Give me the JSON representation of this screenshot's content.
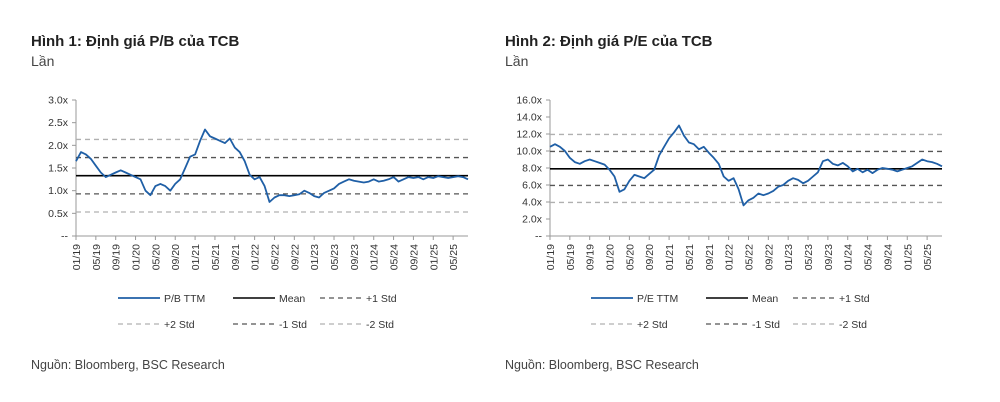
{
  "charts": [
    {
      "title": "Hình 1: Định giá P/B của TCB",
      "unit": "Lần",
      "source": "Nguồn: Bloomberg, BSC Research"
    },
    {
      "title": "Hình 2: Định giá P/E của TCB",
      "unit": "Lần",
      "source": "Nguồn: Bloomberg, BSC Research"
    }
  ],
  "colors": {
    "series": "#1f5fa6",
    "mean": "#000000",
    "std1": "#555555",
    "std2": "#b0b0b0"
  },
  "chart_data": [
    {
      "type": "line",
      "title": "Hình 1: Định giá P/B của TCB",
      "ylabel": "Lần",
      "ylim": [
        0,
        3.0
      ],
      "y_ticks": [
        "--",
        "0.5x",
        "1.0x",
        "1.5x",
        "2.0x",
        "2.5x",
        "3.0x"
      ],
      "y_tick_values": [
        0,
        0.5,
        1.0,
        1.5,
        2.0,
        2.5,
        3.0
      ],
      "x_ticks": [
        "01/19",
        "05/19",
        "09/19",
        "01/20",
        "05/20",
        "09/20",
        "01/21",
        "05/21",
        "09/21",
        "01/22",
        "05/22",
        "09/22",
        "01/23",
        "05/23",
        "09/23",
        "01/24",
        "05/24",
        "09/24",
        "01/25",
        "05/25"
      ],
      "x_range": [
        0,
        79
      ],
      "series": [
        {
          "name": "P/B TTM",
          "x": [
            0,
            1,
            2,
            3,
            4,
            5,
            6,
            7,
            8,
            9,
            10,
            11,
            12,
            13,
            14,
            15,
            16,
            17,
            18,
            19,
            20,
            21,
            22,
            23,
            24,
            25,
            26,
            27,
            28,
            29,
            30,
            31,
            32,
            33,
            34,
            35,
            36,
            37,
            38,
            39,
            40,
            41,
            42,
            43,
            44,
            45,
            46,
            47,
            48,
            49,
            50,
            51,
            52,
            53,
            54,
            55,
            56,
            57,
            58,
            59,
            60,
            61,
            62,
            63,
            64,
            65,
            66,
            67,
            68,
            69,
            70,
            71,
            72,
            73,
            74,
            75,
            76,
            77,
            78,
            79
          ],
          "values": [
            1.65,
            1.85,
            1.8,
            1.7,
            1.55,
            1.4,
            1.3,
            1.35,
            1.4,
            1.45,
            1.4,
            1.35,
            1.3,
            1.25,
            1.0,
            0.9,
            1.1,
            1.15,
            1.1,
            1.0,
            1.15,
            1.25,
            1.5,
            1.75,
            1.8,
            2.1,
            2.35,
            2.2,
            2.15,
            2.1,
            2.05,
            2.15,
            1.95,
            1.85,
            1.65,
            1.35,
            1.25,
            1.3,
            1.1,
            0.75,
            0.85,
            0.9,
            0.9,
            0.88,
            0.9,
            0.92,
            1.0,
            0.95,
            0.88,
            0.85,
            0.95,
            1.0,
            1.05,
            1.15,
            1.2,
            1.25,
            1.22,
            1.2,
            1.18,
            1.2,
            1.25,
            1.2,
            1.22,
            1.25,
            1.3,
            1.2,
            1.25,
            1.3,
            1.28,
            1.3,
            1.25,
            1.3,
            1.28,
            1.32,
            1.3,
            1.28,
            1.3,
            1.32,
            1.3,
            1.25
          ]
        }
      ],
      "reference_lines": [
        {
          "name": "Mean",
          "value": 1.33
        },
        {
          "name": "+1 Std",
          "value": 1.73
        },
        {
          "name": "+2 Std",
          "value": 2.13
        },
        {
          "name": "-1 Std",
          "value": 0.93
        },
        {
          "name": "-2 Std",
          "value": 0.53
        }
      ],
      "legend": [
        "P/B TTM",
        "Mean",
        "+1 Std",
        "+2 Std",
        "-1 Std",
        "-2 Std"
      ],
      "legend_position": "bottom",
      "grid": false
    },
    {
      "type": "line",
      "title": "Hình 2: Định giá P/E của TCB",
      "ylabel": "Lần",
      "ylim": [
        0,
        16.0
      ],
      "y_ticks": [
        "--",
        "2.0x",
        "4.0x",
        "6.0x",
        "8.0x",
        "10.0x",
        "12.0x",
        "14.0x",
        "16.0x"
      ],
      "y_tick_values": [
        0,
        2,
        4,
        6,
        8,
        10,
        12,
        14,
        16
      ],
      "x_ticks": [
        "01/19",
        "05/19",
        "09/19",
        "01/20",
        "05/20",
        "09/20",
        "01/21",
        "05/21",
        "09/21",
        "01/22",
        "05/22",
        "09/22",
        "01/23",
        "05/23",
        "09/23",
        "01/24",
        "05/24",
        "09/24",
        "01/25",
        "05/25"
      ],
      "x_range": [
        0,
        79
      ],
      "series": [
        {
          "name": "P/E TTM",
          "x": [
            0,
            1,
            2,
            3,
            4,
            5,
            6,
            7,
            8,
            9,
            10,
            11,
            12,
            13,
            14,
            15,
            16,
            17,
            18,
            19,
            20,
            21,
            22,
            23,
            24,
            25,
            26,
            27,
            28,
            29,
            30,
            31,
            32,
            33,
            34,
            35,
            36,
            37,
            38,
            39,
            40,
            41,
            42,
            43,
            44,
            45,
            46,
            47,
            48,
            49,
            50,
            51,
            52,
            53,
            54,
            55,
            56,
            57,
            58,
            59,
            60,
            61,
            62,
            63,
            64,
            65,
            66,
            67,
            68,
            69,
            70,
            71,
            72,
            73,
            74,
            75,
            76,
            77,
            78,
            79
          ],
          "values": [
            10.5,
            10.8,
            10.5,
            10.0,
            9.2,
            8.7,
            8.5,
            8.8,
            9.0,
            8.8,
            8.6,
            8.4,
            7.8,
            7.0,
            5.2,
            5.5,
            6.5,
            7.2,
            7.0,
            6.8,
            7.3,
            7.8,
            9.5,
            10.5,
            11.5,
            12.2,
            13.0,
            11.8,
            11.0,
            10.8,
            10.2,
            10.5,
            9.8,
            9.2,
            8.5,
            7.0,
            6.5,
            6.8,
            5.5,
            3.6,
            4.2,
            4.5,
            5.0,
            4.8,
            5.0,
            5.3,
            5.8,
            6.0,
            6.5,
            6.8,
            6.6,
            6.2,
            6.5,
            7.0,
            7.5,
            8.8,
            9.0,
            8.5,
            8.3,
            8.6,
            8.2,
            7.6,
            7.9,
            7.5,
            7.8,
            7.4,
            7.8,
            8.0,
            7.9,
            7.8,
            7.6,
            7.8,
            8.0,
            8.2,
            8.6,
            9.0,
            8.8,
            8.7,
            8.5,
            8.2
          ]
        }
      ],
      "reference_lines": [
        {
          "name": "Mean",
          "value": 7.9
        },
        {
          "name": "+1 Std",
          "value": 9.95
        },
        {
          "name": "+2 Std",
          "value": 11.95
        },
        {
          "name": "-1 Std",
          "value": 5.95
        },
        {
          "name": "-2 Std",
          "value": 3.95
        }
      ],
      "legend": [
        "P/E TTM",
        "Mean",
        "+1 Std",
        "+2 Std",
        "-1 Std",
        "-2 Std"
      ],
      "legend_position": "bottom",
      "grid": false
    }
  ]
}
